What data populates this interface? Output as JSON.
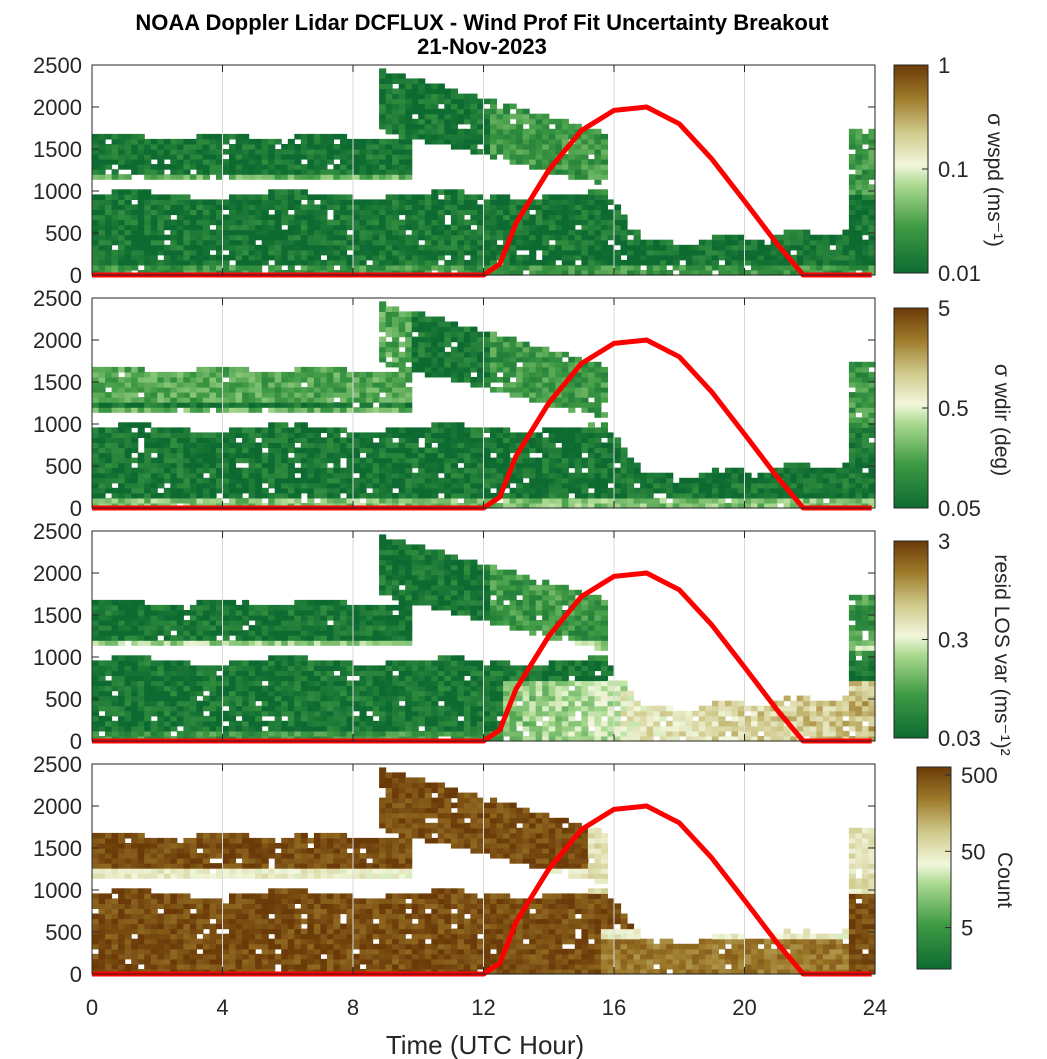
{
  "chart_data": {
    "type": "heatmap",
    "title": "NOAA Doppler Lidar DCFLUX - Wind Prof Fit Uncertainty Breakout",
    "subtitle": "21-Nov-2023",
    "xlabel": "Time (UTC Hour)",
    "xlim": [
      0,
      24
    ],
    "xticks": [
      "0",
      "4",
      "8",
      "12",
      "16",
      "20",
      "24"
    ],
    "ylim": [
      0,
      2500
    ],
    "yticks": [
      "0",
      "500",
      "1000",
      "1500",
      "2000",
      "2500"
    ],
    "panels": [
      {
        "colorbar_label": "σ wspd (ms⁻¹)",
        "colorbar_ticks": [
          "1",
          "0.1",
          "0.01"
        ],
        "scale": "log"
      },
      {
        "colorbar_label": "σ wdir (deg)",
        "colorbar_ticks": [
          "5",
          "0.5",
          "0.05"
        ],
        "scale": "log"
      },
      {
        "colorbar_label": "resid LOS var (ms⁻¹)²",
        "colorbar_ticks": [
          "3",
          "0.3",
          "0.03"
        ],
        "scale": "log"
      },
      {
        "colorbar_label": "Count",
        "colorbar_ticks": [
          "500",
          "50",
          "5"
        ],
        "scale": "log"
      }
    ],
    "overlay_line": {
      "color": "#ff0000",
      "x": [
        0,
        12.0,
        12.5,
        13,
        14,
        15,
        16,
        17,
        18,
        19,
        20,
        21,
        21.8,
        22,
        23.9
      ],
      "y": [
        0,
        0,
        130,
        620,
        1250,
        1720,
        1960,
        2000,
        1800,
        1380,
        880,
        370,
        0,
        0,
        0
      ]
    },
    "data_regions": [
      {
        "x": [
          0,
          23.9
        ],
        "y": [
          0,
          980
        ],
        "note": "lower boundary layer echoes"
      },
      {
        "x": [
          0,
          9.7
        ],
        "y": [
          1100,
          1700
        ],
        "note": "elevated layer"
      },
      {
        "x": [
          8.9,
          15.8
        ],
        "y": [
          1300,
          2500
        ],
        "note": "descending layer"
      },
      {
        "x": [
          15.8,
          23.9
        ],
        "y": [
          0,
          500
        ],
        "note": "afternoon low layer"
      }
    ],
    "colors": {
      "low": "#0d6b31",
      "mid": "#e8f0c4",
      "high": "#6b3a08",
      "sun_line": "#ff0000"
    }
  }
}
